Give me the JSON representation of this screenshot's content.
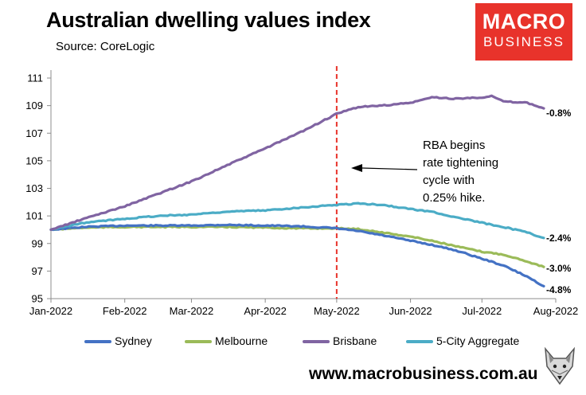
{
  "header": {
    "title": "Australian dwelling values index",
    "source": "Source: CoreLogic"
  },
  "logo": {
    "line1": "MACRO",
    "line2": "BUSINESS",
    "color": "#e8332b"
  },
  "website": "www.macrobusiness.com.au",
  "icons": {
    "mascot": "fox-head-icon"
  },
  "annotation": {
    "lines": [
      "RBA begins",
      "rate tightening",
      "cycle with",
      "0.25% hike."
    ],
    "marker_date": "2022-05-01",
    "marker_color": "#e8332b"
  },
  "chart_data": {
    "type": "line",
    "title": "Australian dwelling values index",
    "subtitle": "Source: CoreLogic",
    "xlabel": "",
    "ylabel": "",
    "x_range": [
      "2022-01-01",
      "2022-08-01"
    ],
    "x_ticks": [
      "Jan-2022",
      "Feb-2022",
      "Mar-2022",
      "Apr-2022",
      "May-2022",
      "Jun-2022",
      "Jul-2022",
      "Aug-2022"
    ],
    "ylim": [
      95,
      111
    ],
    "y_ticks": [
      95,
      97,
      99,
      101,
      103,
      105,
      107,
      109,
      111
    ],
    "grid": false,
    "legend_position": "bottom",
    "series": [
      {
        "name": "Sydney",
        "color": "#4472c4",
        "end_label": "-4.8%",
        "points": [
          [
            "2022-01-01",
            100.0
          ],
          [
            "2022-01-15",
            100.2
          ],
          [
            "2022-02-01",
            100.3
          ],
          [
            "2022-02-15",
            100.3
          ],
          [
            "2022-03-01",
            100.3
          ],
          [
            "2022-03-15",
            100.35
          ],
          [
            "2022-04-01",
            100.3
          ],
          [
            "2022-04-15",
            100.25
          ],
          [
            "2022-05-01",
            100.1
          ],
          [
            "2022-05-10",
            99.9
          ],
          [
            "2022-05-20",
            99.6
          ],
          [
            "2022-06-01",
            99.2
          ],
          [
            "2022-06-10",
            98.9
          ],
          [
            "2022-06-20",
            98.5
          ],
          [
            "2022-07-01",
            97.9
          ],
          [
            "2022-07-10",
            97.4
          ],
          [
            "2022-07-20",
            96.6
          ],
          [
            "2022-07-27",
            95.9
          ]
        ]
      },
      {
        "name": "Melbourne",
        "color": "#9bbb59",
        "end_label": "-3.0%",
        "points": [
          [
            "2022-01-01",
            100.0
          ],
          [
            "2022-01-15",
            100.15
          ],
          [
            "2022-02-01",
            100.2
          ],
          [
            "2022-02-15",
            100.2
          ],
          [
            "2022-03-01",
            100.2
          ],
          [
            "2022-03-15",
            100.2
          ],
          [
            "2022-04-01",
            100.15
          ],
          [
            "2022-04-15",
            100.1
          ],
          [
            "2022-05-01",
            100.1
          ],
          [
            "2022-05-10",
            100.05
          ],
          [
            "2022-05-20",
            99.8
          ],
          [
            "2022-06-01",
            99.5
          ],
          [
            "2022-06-10",
            99.2
          ],
          [
            "2022-06-20",
            98.8
          ],
          [
            "2022-07-01",
            98.4
          ],
          [
            "2022-07-10",
            98.2
          ],
          [
            "2022-07-20",
            97.7
          ],
          [
            "2022-07-27",
            97.3
          ]
        ]
      },
      {
        "name": "Brisbane",
        "color": "#8064a2",
        "end_label": "-0.8%",
        "points": [
          [
            "2022-01-01",
            100.0
          ],
          [
            "2022-01-15",
            100.8
          ],
          [
            "2022-02-01",
            101.7
          ],
          [
            "2022-02-15",
            102.6
          ],
          [
            "2022-03-01",
            103.5
          ],
          [
            "2022-03-15",
            104.6
          ],
          [
            "2022-04-01",
            105.9
          ],
          [
            "2022-04-15",
            107.0
          ],
          [
            "2022-05-01",
            108.4
          ],
          [
            "2022-05-10",
            108.9
          ],
          [
            "2022-05-20",
            109.0
          ],
          [
            "2022-06-01",
            109.2
          ],
          [
            "2022-06-10",
            109.6
          ],
          [
            "2022-06-20",
            109.5
          ],
          [
            "2022-07-01",
            109.6
          ],
          [
            "2022-07-05",
            109.7
          ],
          [
            "2022-07-10",
            109.3
          ],
          [
            "2022-07-20",
            109.2
          ],
          [
            "2022-07-27",
            108.8
          ]
        ]
      },
      {
        "name": "5-City Aggregate",
        "color": "#4bacc6",
        "end_label": "-2.4%",
        "points": [
          [
            "2022-01-01",
            100.0
          ],
          [
            "2022-01-15",
            100.5
          ],
          [
            "2022-02-01",
            100.8
          ],
          [
            "2022-02-15",
            101.0
          ],
          [
            "2022-03-01",
            101.1
          ],
          [
            "2022-03-15",
            101.3
          ],
          [
            "2022-04-01",
            101.4
          ],
          [
            "2022-04-15",
            101.6
          ],
          [
            "2022-05-01",
            101.8
          ],
          [
            "2022-05-10",
            101.9
          ],
          [
            "2022-05-20",
            101.8
          ],
          [
            "2022-06-01",
            101.5
          ],
          [
            "2022-06-10",
            101.3
          ],
          [
            "2022-06-20",
            100.9
          ],
          [
            "2022-07-01",
            100.5
          ],
          [
            "2022-07-10",
            100.2
          ],
          [
            "2022-07-20",
            99.8
          ],
          [
            "2022-07-27",
            99.4
          ]
        ]
      }
    ]
  }
}
